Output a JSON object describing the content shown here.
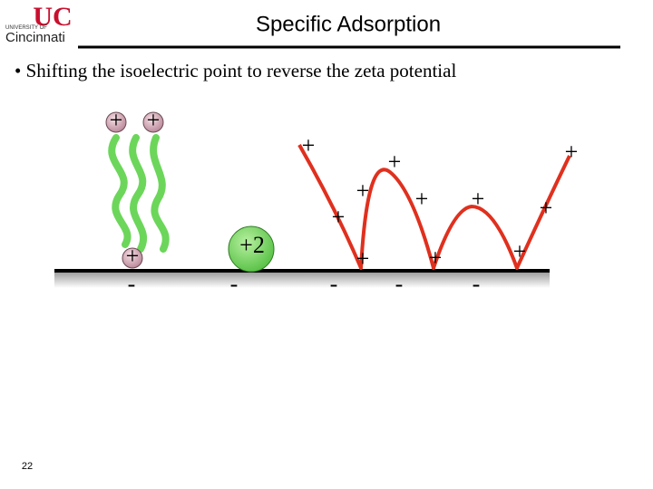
{
  "logo": {
    "mark": "UC",
    "line1": "UNIVERSITY OF",
    "line2": "Cincinnati"
  },
  "header": {
    "title": "Specific Adsorption"
  },
  "bullet": "• Shifting the isoelectric point to reverse the zeta potential",
  "diagram": {
    "ion_charges": [
      "+",
      "+",
      "+"
    ],
    "particle_charge": "+2",
    "polymer_charges": [
      "+",
      "+",
      "+",
      "+",
      "+",
      "+",
      "+",
      "+",
      "+",
      "+",
      "+"
    ],
    "surface_charges": [
      "-",
      "-",
      "-",
      "-",
      "-"
    ]
  },
  "footer": {
    "page": "22"
  }
}
